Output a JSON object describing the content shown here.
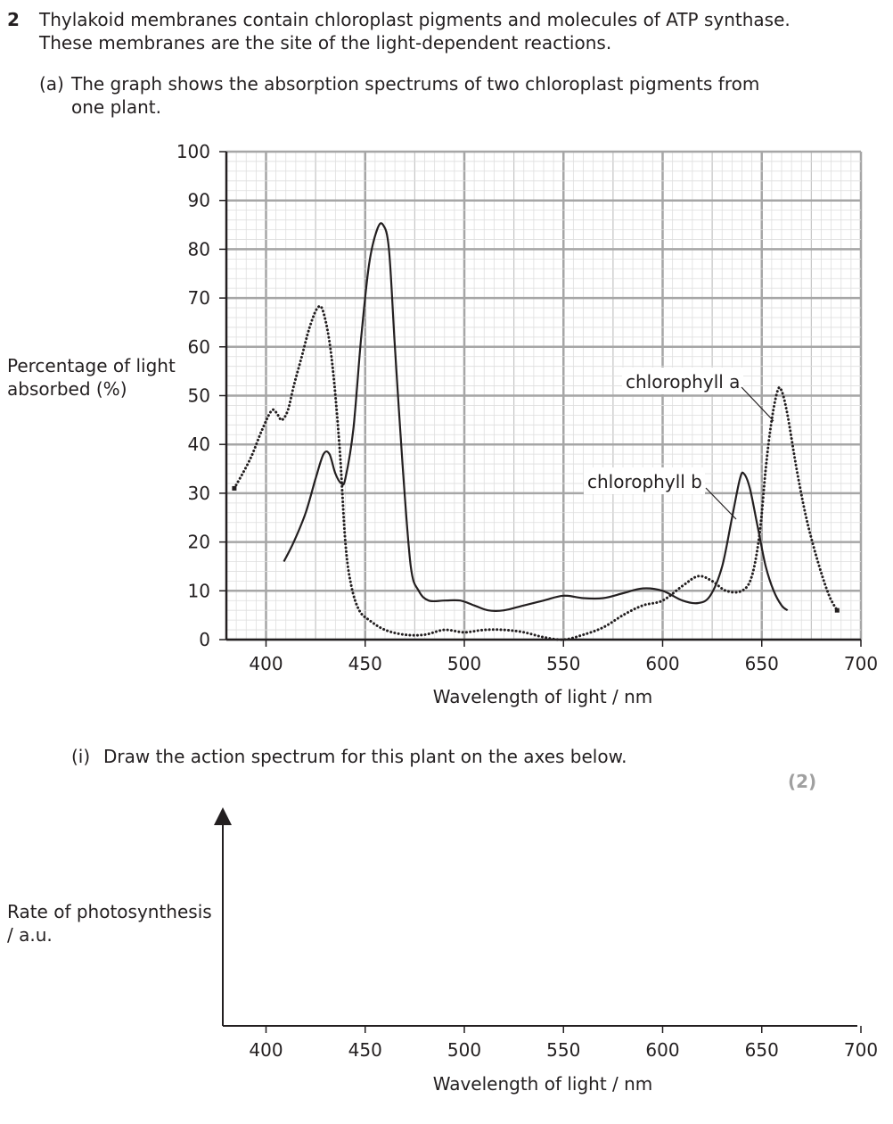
{
  "question": {
    "number": "2",
    "stem_line1": "Thylakoid membranes contain chloroplast pigments and molecules of ATP synthase.",
    "stem_line2": "These membranes are the site of the light-dependent reactions.",
    "part_a_label": "(a)",
    "part_a_line1": "The graph shows the absorption spectrums of two chloroplast pigments from",
    "part_a_line2": "one plant.",
    "part_i_label": "(i)",
    "part_i_text": "Draw the action spectrum for this plant on the axes below.",
    "marks": "(2)"
  },
  "chart_data": [
    {
      "type": "line",
      "ylabel_line1": "Percentage of light",
      "ylabel_line2": "absorbed (%)",
      "xlabel": "Wavelength of light / nm",
      "xlim": [
        380,
        700
      ],
      "ylim": [
        0,
        100
      ],
      "x_ticks": [
        "400",
        "450",
        "500",
        "550",
        "600",
        "650",
        "700"
      ],
      "y_ticks": [
        "0",
        "10",
        "20",
        "30",
        "40",
        "50",
        "60",
        "70",
        "80",
        "90",
        "100"
      ],
      "grid": true,
      "series": [
        {
          "name": "chlorophyll a",
          "style": "dotted",
          "color": "#231f20",
          "points": [
            [
              384,
              31
            ],
            [
              392,
              37
            ],
            [
              398,
              43
            ],
            [
              403,
              47
            ],
            [
              406,
              46
            ],
            [
              408,
              45
            ],
            [
              411,
              47
            ],
            [
              414,
              52
            ],
            [
              418,
              58
            ],
            [
              422,
              64
            ],
            [
              426,
              68
            ],
            [
              429,
              67
            ],
            [
              433,
              58
            ],
            [
              437,
              40
            ],
            [
              440,
              20
            ],
            [
              443,
              11
            ],
            [
              447,
              6
            ],
            [
              452,
              4
            ],
            [
              460,
              2
            ],
            [
              470,
              1
            ],
            [
              480,
              1
            ],
            [
              490,
              2
            ],
            [
              500,
              1.5
            ],
            [
              510,
              2
            ],
            [
              520,
              2
            ],
            [
              530,
              1.5
            ],
            [
              540,
              0.5
            ],
            [
              550,
              0
            ],
            [
              560,
              1
            ],
            [
              570,
              2.5
            ],
            [
              580,
              5
            ],
            [
              590,
              7
            ],
            [
              600,
              8
            ],
            [
              610,
              11
            ],
            [
              618,
              13
            ],
            [
              625,
              12
            ],
            [
              632,
              10
            ],
            [
              640,
              10
            ],
            [
              645,
              13
            ],
            [
              649,
              22
            ],
            [
              652,
              35
            ],
            [
              655,
              45
            ],
            [
              658,
              51
            ],
            [
              660,
              51
            ],
            [
              663,
              46
            ],
            [
              668,
              34
            ],
            [
              673,
              24
            ],
            [
              679,
              15
            ],
            [
              684,
              9
            ],
            [
              688,
              6
            ]
          ]
        },
        {
          "name": "chlorophyll b",
          "style": "solid",
          "color": "#231f20",
          "points": [
            [
              409,
              16
            ],
            [
              414,
              20
            ],
            [
              420,
              26
            ],
            [
              425,
              33
            ],
            [
              429,
              38
            ],
            [
              432,
              38
            ],
            [
              435,
              34
            ],
            [
              438,
              32
            ],
            [
              440,
              33
            ],
            [
              444,
              43
            ],
            [
              448,
              62
            ],
            [
              452,
              77
            ],
            [
              456,
              84
            ],
            [
              459,
              85
            ],
            [
              462,
              80
            ],
            [
              465,
              60
            ],
            [
              469,
              35
            ],
            [
              473,
              15
            ],
            [
              477,
              10
            ],
            [
              482,
              8
            ],
            [
              490,
              8
            ],
            [
              498,
              8
            ],
            [
              505,
              7
            ],
            [
              512,
              6
            ],
            [
              520,
              6
            ],
            [
              530,
              7
            ],
            [
              540,
              8
            ],
            [
              550,
              9
            ],
            [
              560,
              8.5
            ],
            [
              570,
              8.5
            ],
            [
              580,
              9.5
            ],
            [
              590,
              10.5
            ],
            [
              600,
              10
            ],
            [
              610,
              8
            ],
            [
              618,
              7.5
            ],
            [
              624,
              9
            ],
            [
              630,
              15
            ],
            [
              635,
              25
            ],
            [
              639,
              33
            ],
            [
              641,
              34
            ],
            [
              644,
              31
            ],
            [
              648,
              23
            ],
            [
              652,
              15
            ],
            [
              656,
              10
            ],
            [
              660,
              7
            ],
            [
              663,
              6
            ]
          ]
        }
      ],
      "annotations": [
        "chlorophyll a",
        "chlorophyll b"
      ]
    },
    {
      "type": "line",
      "ylabel_line1": "Rate of photosynthesis",
      "ylabel_line2": "/ a.u.",
      "xlabel": "Wavelength of light / nm",
      "xlim": [
        380,
        700
      ],
      "x_ticks": [
        "400",
        "450",
        "500",
        "550",
        "600",
        "650",
        "700"
      ],
      "grid": false,
      "series": []
    }
  ]
}
